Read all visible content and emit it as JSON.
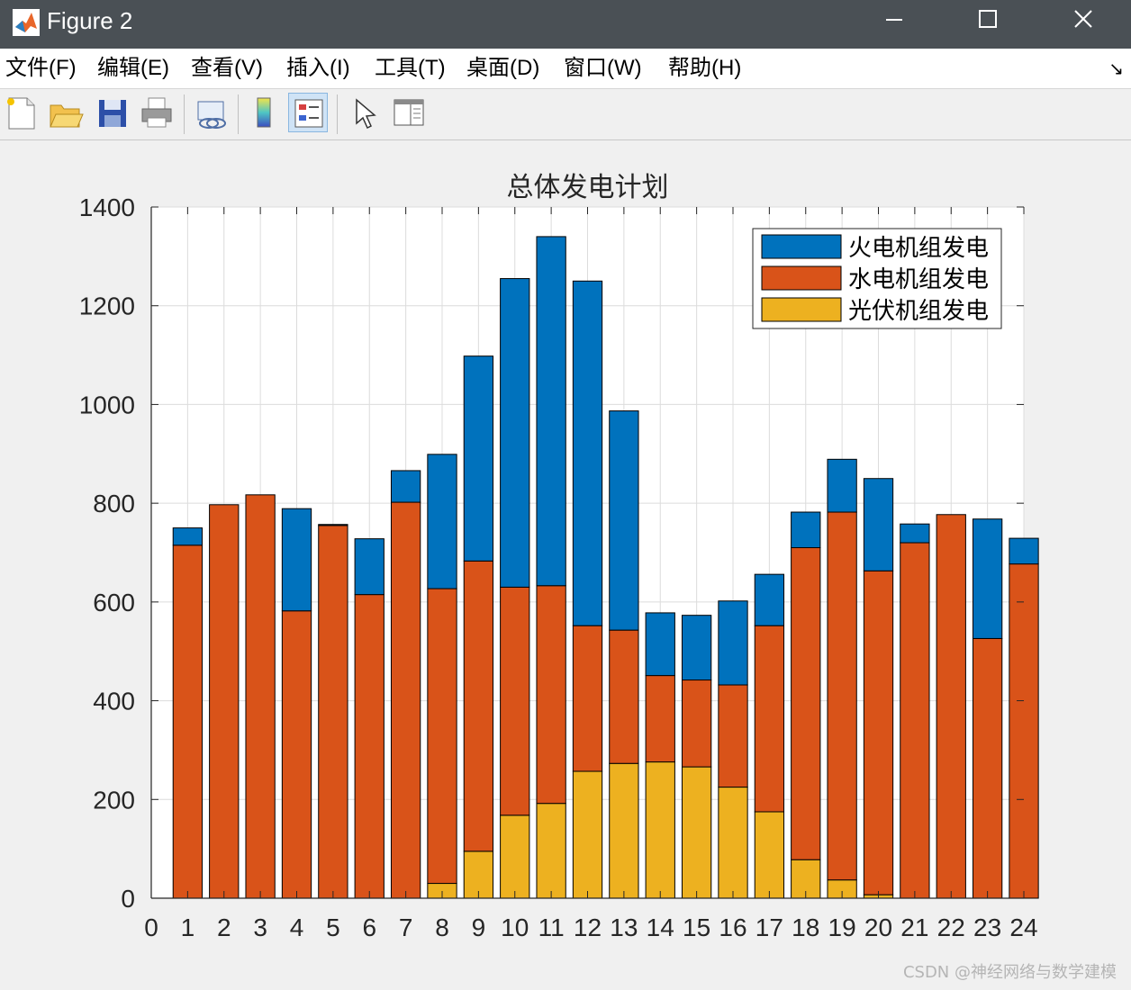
{
  "window": {
    "title": "Figure 2"
  },
  "menu": {
    "items": [
      "文件(F)",
      "编辑(E)",
      "查看(V)",
      "插入(I)",
      "工具(T)",
      "桌面(D)",
      "窗口(W)",
      "帮助(H)"
    ]
  },
  "toolbar": {
    "icons": [
      "new-figure-icon",
      "open-file-icon",
      "save-icon",
      "print-icon",
      "link-plot-icon",
      "colorbar-icon",
      "legend-icon",
      "pointer-icon",
      "property-editor-icon"
    ]
  },
  "watermark": "CSDN @神经网络与数学建模",
  "chart_data": {
    "type": "bar",
    "stacked": true,
    "title": "总体发电计划",
    "xlabel": "",
    "ylabel": "",
    "xlim": [
      0,
      24
    ],
    "ylim": [
      0,
      1400
    ],
    "xticks": [
      "0",
      "1",
      "2",
      "3",
      "4",
      "5",
      "6",
      "7",
      "8",
      "9",
      "10",
      "11",
      "12",
      "13",
      "14",
      "15",
      "16",
      "17",
      "18",
      "19",
      "20",
      "21",
      "22",
      "23",
      "24"
    ],
    "yticks": [
      "0",
      "200",
      "400",
      "600",
      "800",
      "1000",
      "1200",
      "1400"
    ],
    "grid": true,
    "legend_position": "top-right",
    "categories": [
      "1",
      "2",
      "3",
      "4",
      "5",
      "6",
      "7",
      "8",
      "9",
      "10",
      "11",
      "12",
      "13",
      "14",
      "15",
      "16",
      "17",
      "18",
      "19",
      "20",
      "21",
      "22",
      "23",
      "24"
    ],
    "series": [
      {
        "name": "光伏机组发电",
        "color": "#EDB120",
        "values": [
          0,
          0,
          0,
          0,
          0,
          0,
          0,
          30,
          95,
          168,
          192,
          257,
          273,
          276,
          266,
          225,
          175,
          78,
          37,
          7,
          0,
          0,
          0,
          0
        ]
      },
      {
        "name": "水电机组发电",
        "color": "#D95319",
        "values": [
          715,
          797,
          817,
          582,
          755,
          615,
          802,
          597,
          588,
          462,
          441,
          295,
          270,
          175,
          176,
          207,
          377,
          632,
          745,
          656,
          720,
          777,
          526,
          677
        ]
      },
      {
        "name": "火电机组发电",
        "color": "#0072BD",
        "values": [
          35,
          0,
          0,
          207,
          2,
          113,
          64,
          272,
          415,
          625,
          707,
          698,
          444,
          127,
          131,
          170,
          104,
          72,
          107,
          187,
          38,
          0,
          242,
          52
        ]
      }
    ],
    "legend_order": [
      "火电机组发电",
      "水电机组发电",
      "光伏机组发电"
    ]
  }
}
